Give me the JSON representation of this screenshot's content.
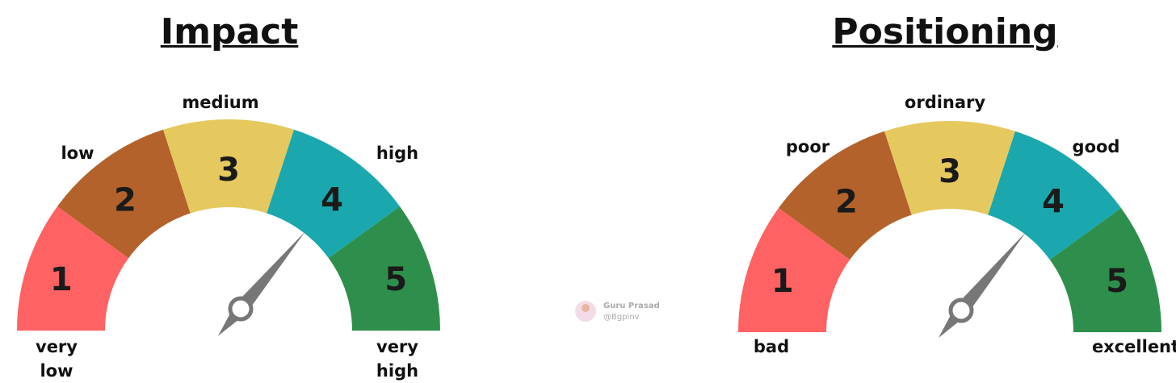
{
  "gauges": [
    {
      "title": "Impact",
      "segments": [
        {
          "number": "1",
          "label": "very low"
        },
        {
          "number": "2",
          "label": "low"
        },
        {
          "number": "3",
          "label": "medium"
        },
        {
          "number": "4",
          "label": "high"
        },
        {
          "number": "5",
          "label": "very high"
        }
      ]
    },
    {
      "title": "Positioning",
      "segments": [
        {
          "number": "1",
          "label": "bad"
        },
        {
          "number": "2",
          "label": "poor"
        },
        {
          "number": "3",
          "label": "ordinary"
        },
        {
          "number": "4",
          "label": "good"
        },
        {
          "number": "5",
          "label": "excellent"
        }
      ]
    }
  ],
  "watermark": {
    "name": "Guru Prasad",
    "handle": "@Bgpinv"
  }
}
